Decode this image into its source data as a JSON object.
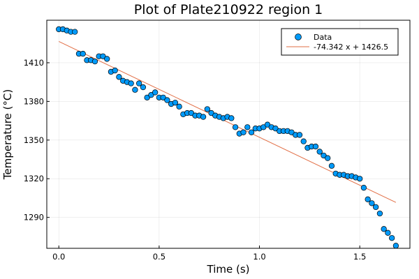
{
  "chart_data": {
    "type": "scatter",
    "title": "Plot of Plate210922 region 1",
    "xlabel": "Time (s)",
    "ylabel": "Temperature (°C)",
    "xlim": [
      -0.06,
      1.75
    ],
    "ylim": [
      1266,
      1443
    ],
    "xticks": [
      0.0,
      0.5,
      1.0,
      1.5
    ],
    "xtick_labels": [
      "0.0",
      "0.5",
      "1.0",
      "1.5"
    ],
    "yticks": [
      1290,
      1320,
      1350,
      1380,
      1410
    ],
    "ytick_labels": [
      "1290",
      "1320",
      "1350",
      "1380",
      "1410"
    ],
    "grid": true,
    "legend": {
      "placement": "top-right"
    },
    "colors": {
      "scatter": "#009AF9",
      "fit": "#E26F46"
    },
    "series": [
      {
        "name": "Data",
        "kind": "scatter",
        "x": [
          0.0,
          0.02,
          0.04,
          0.06,
          0.08,
          0.1,
          0.12,
          0.14,
          0.16,
          0.18,
          0.2,
          0.22,
          0.24,
          0.26,
          0.28,
          0.3,
          0.32,
          0.34,
          0.36,
          0.38,
          0.4,
          0.42,
          0.44,
          0.46,
          0.48,
          0.5,
          0.52,
          0.54,
          0.56,
          0.58,
          0.6,
          0.62,
          0.64,
          0.66,
          0.68,
          0.7,
          0.72,
          0.74,
          0.76,
          0.78,
          0.8,
          0.82,
          0.84,
          0.86,
          0.88,
          0.9,
          0.92,
          0.94,
          0.96,
          0.98,
          1.0,
          1.02,
          1.04,
          1.06,
          1.08,
          1.1,
          1.12,
          1.14,
          1.16,
          1.18,
          1.2,
          1.22,
          1.24,
          1.26,
          1.28,
          1.3,
          1.32,
          1.34,
          1.36,
          1.38,
          1.4,
          1.42,
          1.44,
          1.46,
          1.48,
          1.5,
          1.52,
          1.54,
          1.56,
          1.58,
          1.6,
          1.62,
          1.64,
          1.66,
          1.68
        ],
        "y": [
          1436,
          1436,
          1435,
          1434,
          1434,
          1417,
          1417,
          1412,
          1412,
          1411,
          1415,
          1415,
          1413,
          1403,
          1404,
          1399,
          1396,
          1395,
          1394,
          1389,
          1394,
          1391,
          1383,
          1385,
          1387,
          1383,
          1383,
          1381,
          1378,
          1379,
          1376,
          1370,
          1371,
          1371,
          1369,
          1369,
          1368,
          1374,
          1371,
          1369,
          1368,
          1367,
          1368,
          1367,
          1360,
          1355,
          1356,
          1360,
          1356,
          1359,
          1359,
          1360,
          1362,
          1360,
          1359,
          1357,
          1357,
          1357,
          1356,
          1354,
          1354,
          1349,
          1344,
          1345,
          1345,
          1341,
          1338,
          1336,
          1330,
          1324,
          1323,
          1323,
          1322,
          1322,
          1321,
          1320,
          1313,
          1304,
          1301,
          1298,
          1293,
          1281,
          1278,
          1274,
          1268
        ]
      },
      {
        "name": "-74.342 x + 1426.5",
        "kind": "line",
        "slope": -74.342,
        "intercept": 1426.5,
        "x": [
          0.0,
          1.68
        ],
        "y": [
          1426.5,
          1301.6
        ]
      }
    ]
  }
}
